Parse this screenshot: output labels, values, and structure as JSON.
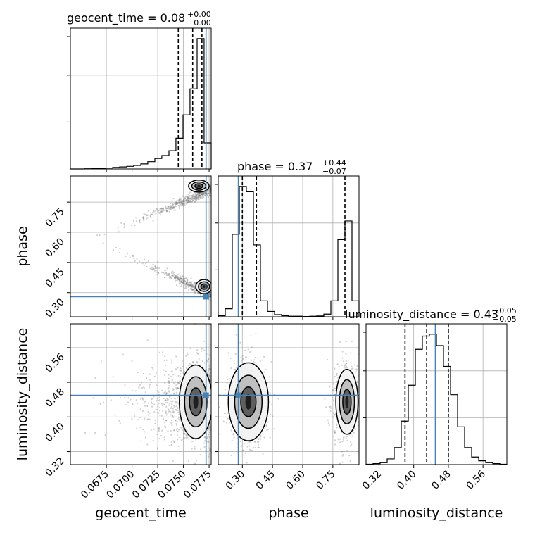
{
  "colors": {
    "truth": "#4682b4",
    "hist": "#000000",
    "grid": "#b0b0b0",
    "scatter": "#777777"
  },
  "chart_data": {
    "type": "corner",
    "parameters": [
      "geocent_time",
      "phase",
      "luminosity_distance"
    ],
    "truths": {
      "geocent_time": 0.0772,
      "phase": 0.28,
      "luminosity_distance": 0.45
    },
    "titles": [
      {
        "param": "geocent_time",
        "text": "geocent_time = 0.08",
        "sup": "+0.00",
        "sub": "−0.00"
      },
      {
        "param": "phase",
        "text": "phase = 0.37",
        "sup": "+0.44",
        "sub": "−0.07"
      },
      {
        "param": "luminosity_distance",
        "text": "luminosity_distance = 0.43",
        "sup": "+0.05",
        "sub": "−0.05"
      }
    ],
    "ranges": {
      "geocent_time": [
        0.064,
        0.0777
      ],
      "phase": [
        0.18,
        0.88
      ],
      "luminosity_distance": [
        0.29,
        0.615
      ]
    },
    "ticks": {
      "geocent_time": [
        "0.0675",
        "0.0700",
        "0.0725",
        "0.0750",
        "0.0775"
      ],
      "phase": [
        "0.30",
        "0.45",
        "0.60",
        "0.75"
      ],
      "luminosity_distance": [
        "0.32",
        "0.40",
        "0.48",
        "0.56"
      ]
    },
    "quantiles": {
      "geocent_time": [
        0.0745,
        0.0759,
        0.0768
      ],
      "phase": [
        0.3,
        0.37,
        0.81
      ],
      "luminosity_distance": [
        0.38,
        0.43,
        0.48
      ]
    },
    "histograms": {
      "geocent_time": {
        "edges": [
          0.064,
          0.06468,
          0.06537,
          0.06605,
          0.06674,
          0.06742,
          0.06811,
          0.06879,
          0.06948,
          0.07016,
          0.07085,
          0.07153,
          0.07222,
          0.0729,
          0.07359,
          0.07427,
          0.07496,
          0.07564,
          0.07633,
          0.07701,
          0.0777
        ],
        "counts": [
          0,
          0,
          1,
          2,
          3,
          5,
          8,
          11,
          14,
          19,
          27,
          39,
          56,
          72,
          98,
          165,
          290,
          430,
          700,
          140
        ]
      },
      "phase": {
        "edges": [
          0.18,
          0.215,
          0.25,
          0.285,
          0.32,
          0.355,
          0.39,
          0.425,
          0.46,
          0.495,
          0.53,
          0.565,
          0.6,
          0.635,
          0.67,
          0.705,
          0.74,
          0.775,
          0.81,
          0.845,
          0.88
        ],
        "counts": [
          4,
          30,
          310,
          490,
          470,
          270,
          60,
          20,
          8,
          4,
          2,
          2,
          1,
          2,
          3,
          10,
          60,
          290,
          360,
          60
        ]
      },
      "luminosity_distance": {
        "edges": [
          0.29,
          0.30625,
          0.3225,
          0.33875,
          0.355,
          0.37125,
          0.3875,
          0.40375,
          0.42,
          0.43625,
          0.4525,
          0.46875,
          0.485,
          0.50125,
          0.5175,
          0.53375,
          0.55,
          0.56625,
          0.5825,
          0.59875,
          0.615
        ],
        "counts": [
          2,
          5,
          10,
          30,
          90,
          230,
          420,
          610,
          680,
          690,
          630,
          520,
          370,
          200,
          90,
          40,
          20,
          10,
          5,
          2
        ]
      }
    },
    "scatter_seed": 7
  }
}
